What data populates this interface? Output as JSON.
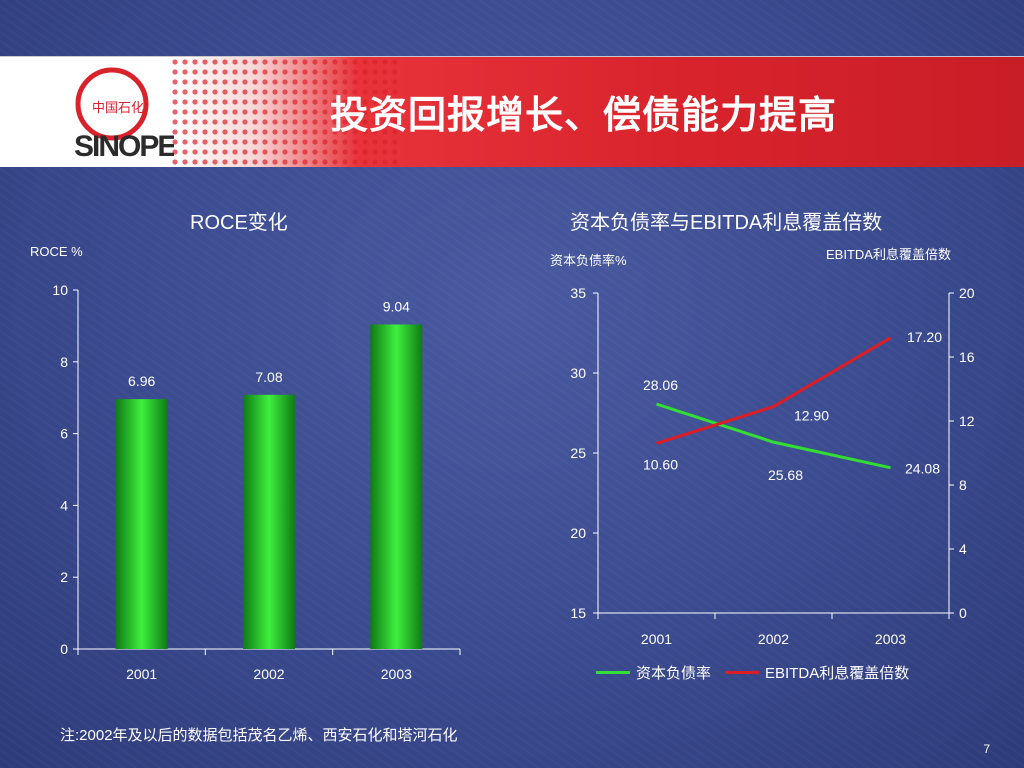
{
  "slide": {
    "title": "投资回报增长、偿债能力提高",
    "note": "注:2002年及以后的数据包括茂名乙烯、西安石化和塔河石化",
    "page_number": "7",
    "logo": {
      "text": "SINOPEC",
      "cn": "中国石化",
      "icon": "sinopec-logo-icon"
    }
  },
  "colors": {
    "background": "#3a4a8e",
    "banner_red": "#d9232c",
    "bar_green": "#22c02a",
    "line_green": "#33dd33",
    "line_red": "#dd1c24"
  },
  "chart_data": [
    {
      "type": "bar",
      "title": "ROCE变化",
      "ylabel": "ROCE %",
      "categories": [
        "2001",
        "2002",
        "2003"
      ],
      "values": [
        6.96,
        7.08,
        9.04
      ],
      "data_labels": [
        "6.96",
        "7.08",
        "9.04"
      ],
      "ylim": [
        0,
        10
      ],
      "yticks": [
        0,
        2,
        4,
        6,
        8,
        10
      ],
      "grid": false
    },
    {
      "type": "line",
      "title": "资本负债率与EBITDA利息覆盖倍数",
      "categories": [
        "2001",
        "2002",
        "2003"
      ],
      "left_axis": {
        "label": "资本负债率%",
        "ylim": [
          15,
          35
        ],
        "ticks": [
          15,
          20,
          25,
          30,
          35
        ]
      },
      "right_axis": {
        "label": "EBITDA利息覆盖倍数",
        "ylim": [
          0,
          20
        ],
        "ticks": [
          0,
          4,
          8,
          12,
          16,
          20
        ]
      },
      "series": [
        {
          "name": "资本负债率",
          "axis": "left",
          "values": [
            28.06,
            25.68,
            24.08
          ],
          "labels": [
            "28.06",
            "",
            "24.08"
          ],
          "label_mid": "25.68",
          "color": "#33dd33"
        },
        {
          "name": "EBITDA利息覆盖倍数",
          "axis": "right",
          "values": [
            10.6,
            12.9,
            17.2
          ],
          "labels": [
            "10.60",
            "12.90",
            "17.20"
          ],
          "color": "#dd1c24"
        }
      ],
      "legend": "bottom",
      "grid": false
    }
  ]
}
